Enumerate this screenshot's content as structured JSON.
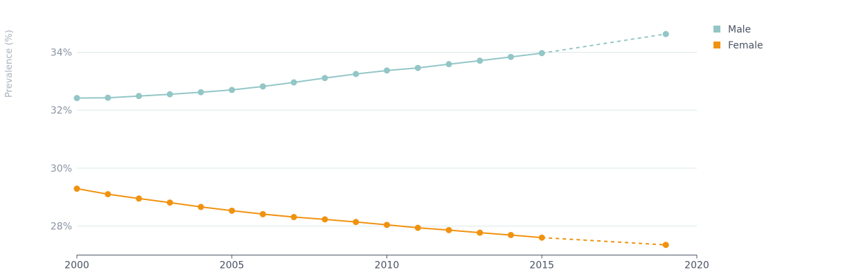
{
  "chart_data": {
    "type": "line",
    "ylabel": "Prevalence (%)",
    "xlabel": "",
    "xlim": [
      2000,
      2020
    ],
    "ylim": [
      27,
      35.2
    ],
    "x_ticks": [
      2000,
      2005,
      2010,
      2015,
      2020
    ],
    "x_tick_labels": [
      "2000",
      "2005",
      "2010",
      "2015",
      "2020"
    ],
    "y_ticks": [
      28,
      30,
      32,
      34
    ],
    "y_tick_labels": [
      "28%",
      "30%",
      "32%",
      "34%"
    ],
    "grid": true,
    "legend_position": "top-right",
    "projection_start": 2015,
    "series": [
      {
        "name": "Male",
        "color": "#93c6c6",
        "x": [
          2000,
          2001,
          2002,
          2003,
          2004,
          2005,
          2006,
          2007,
          2008,
          2009,
          2010,
          2011,
          2012,
          2013,
          2014,
          2015,
          2019
        ],
        "values": [
          32.42,
          32.43,
          32.49,
          32.55,
          32.62,
          32.7,
          32.82,
          32.96,
          33.11,
          33.25,
          33.37,
          33.46,
          33.59,
          33.71,
          33.84,
          33.97,
          34.63
        ]
      },
      {
        "name": "Female",
        "color": "#f0920f",
        "x": [
          2000,
          2001,
          2002,
          2003,
          2004,
          2005,
          2006,
          2007,
          2008,
          2009,
          2010,
          2011,
          2012,
          2013,
          2014,
          2015,
          2019
        ],
        "values": [
          29.29,
          29.1,
          28.95,
          28.81,
          28.66,
          28.53,
          28.41,
          28.31,
          28.23,
          28.14,
          28.04,
          27.94,
          27.86,
          27.77,
          27.69,
          27.6,
          27.35
        ]
      }
    ]
  }
}
